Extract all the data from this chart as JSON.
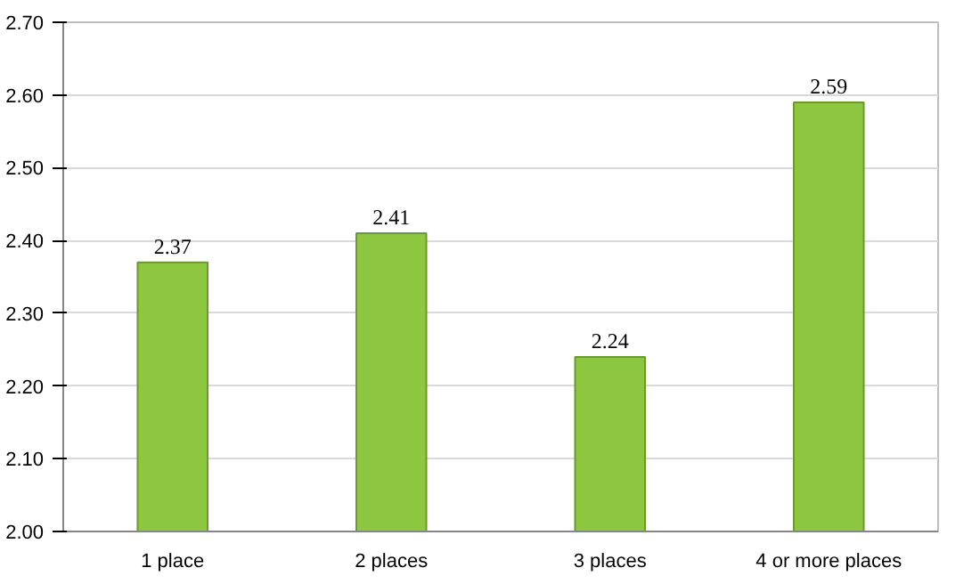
{
  "chart_data": {
    "type": "bar",
    "categories": [
      "1 place",
      "2 places",
      "3 places",
      "4 or more places"
    ],
    "values": [
      2.37,
      2.41,
      2.24,
      2.59
    ],
    "color": "#8dc63f",
    "ylim": [
      2.0,
      2.7
    ],
    "yticks": [
      {
        "value": 2.0,
        "label": "2.00"
      },
      {
        "value": 2.1,
        "label": "2.10"
      },
      {
        "value": 2.2,
        "label": "2.20"
      },
      {
        "value": 2.3,
        "label": "2.30"
      },
      {
        "value": 2.4,
        "label": "2.40"
      },
      {
        "value": 2.5,
        "label": "2.50"
      },
      {
        "value": 2.6,
        "label": "2.60"
      },
      {
        "value": 2.7,
        "label": "2.70"
      }
    ],
    "grid": "y",
    "data_labels": true
  }
}
